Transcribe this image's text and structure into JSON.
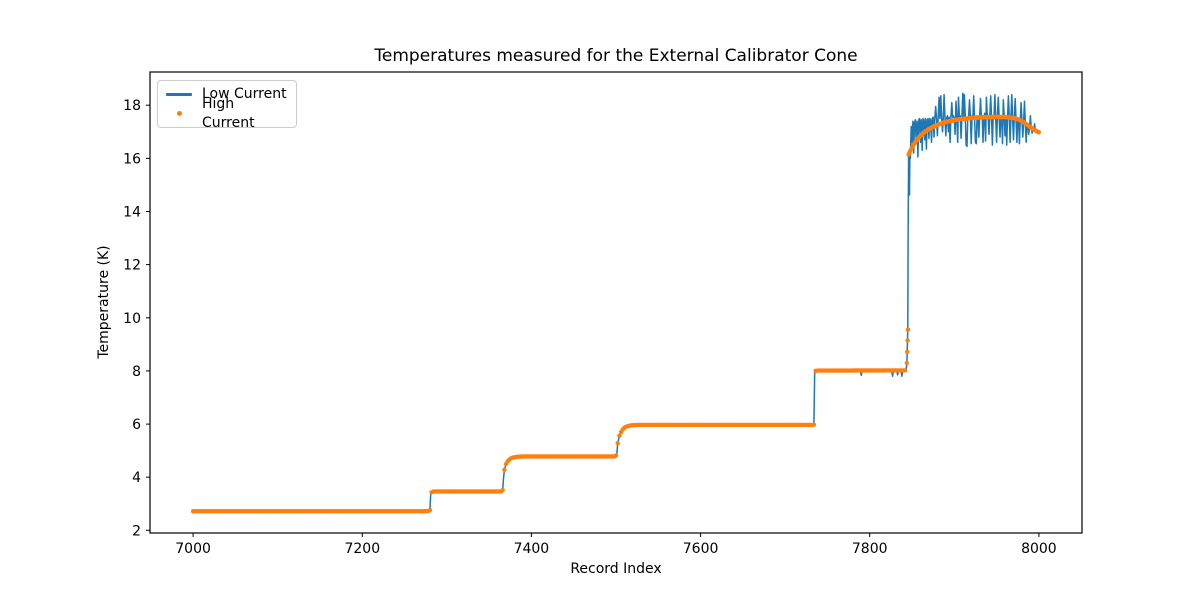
{
  "chart_data": {
    "type": "line+scatter",
    "title": "Temperatures measured for the External Calibrator Cone",
    "xlabel": "Record Index",
    "ylabel": "Temperature (K)",
    "xlim": [
      6949,
      8051
    ],
    "ylim": [
      1.9,
      19.25
    ],
    "xticks": [
      7000,
      7200,
      7400,
      7600,
      7800,
      8000
    ],
    "yticks": [
      2,
      4,
      6,
      8,
      10,
      12,
      14,
      16,
      18
    ],
    "grid": false,
    "legend_position": "upper-left",
    "series": [
      {
        "name": "Low Current",
        "type": "line",
        "color": "#1f77b4"
      },
      {
        "name": "High Current",
        "type": "scatter",
        "color": "#ff7f0e"
      }
    ],
    "plateau_summary": [
      {
        "records": "7000-7280",
        "temp_K": 2.72
      },
      {
        "records": "7283-7366",
        "temp_K": 3.46
      },
      {
        "records": "7372-7500",
        "temp_K": 4.78
      },
      {
        "records": "7515-7733",
        "temp_K": 5.97
      },
      {
        "records": "7735-7843",
        "temp_K": 8.0
      },
      {
        "records": "7848-8000",
        "temp_K": "rise 16.1 to 17.55 then 17.0; blue noisy 16.0-18.45"
      }
    ],
    "profile": [
      [
        7000,
        2.72
      ],
      [
        7279,
        2.72
      ],
      [
        7280,
        2.76
      ],
      [
        7281,
        3.42
      ],
      [
        7284,
        3.46
      ],
      [
        7364,
        3.46
      ],
      [
        7366,
        3.52
      ],
      [
        7367,
        3.95
      ],
      [
        7368,
        4.28
      ],
      [
        7370,
        4.5
      ],
      [
        7373,
        4.65
      ],
      [
        7377,
        4.73
      ],
      [
        7383,
        4.77
      ],
      [
        7392,
        4.78
      ],
      [
        7499,
        4.78
      ],
      [
        7501,
        4.85
      ],
      [
        7502,
        5.28
      ],
      [
        7504,
        5.56
      ],
      [
        7507,
        5.77
      ],
      [
        7511,
        5.89
      ],
      [
        7517,
        5.95
      ],
      [
        7526,
        5.97
      ],
      [
        7732,
        5.97
      ],
      [
        7734,
        5.98
      ],
      [
        7735,
        8.0
      ],
      [
        7738,
        8.01
      ],
      [
        7843,
        8.02
      ]
    ],
    "blue_dips": [
      [
        7789,
        8.0
      ],
      [
        7790,
        7.83
      ],
      [
        7791,
        8.0
      ],
      [
        7826,
        8.0
      ],
      [
        7827,
        7.8
      ],
      [
        7828,
        8.0
      ],
      [
        7832,
        8.0
      ],
      [
        7833,
        7.85
      ],
      [
        7834,
        8.0
      ],
      [
        7837,
        8.0
      ],
      [
        7838,
        7.8
      ],
      [
        7839,
        8.0
      ]
    ],
    "blue_riser": [
      [
        7844,
        8.3
      ],
      [
        7845,
        9.6
      ],
      [
        7845.4,
        13.0
      ],
      [
        7846,
        16.1
      ],
      [
        7846.5,
        15.6
      ],
      [
        7847,
        14.62
      ],
      [
        7847.5,
        16.3
      ]
    ],
    "orange_riser_dots": [
      [
        7843.8,
        8.3
      ],
      [
        7844.3,
        8.72
      ],
      [
        7844.8,
        9.15
      ],
      [
        7845.3,
        9.55
      ]
    ],
    "high_orange": [
      [
        7846,
        16.15
      ],
      [
        7850,
        16.42
      ],
      [
        7854,
        16.62
      ],
      [
        7859,
        16.82
      ],
      [
        7864,
        16.97
      ],
      [
        7870,
        17.1
      ],
      [
        7877,
        17.22
      ],
      [
        7885,
        17.32
      ],
      [
        7894,
        17.4
      ],
      [
        7904,
        17.46
      ],
      [
        7914,
        17.5
      ],
      [
        7926,
        17.53
      ],
      [
        7938,
        17.55
      ],
      [
        7952,
        17.56
      ],
      [
        7962,
        17.55
      ],
      [
        7970,
        17.52
      ],
      [
        7976,
        17.46
      ],
      [
        7982,
        17.36
      ],
      [
        7988,
        17.22
      ],
      [
        7993,
        17.1
      ],
      [
        8000,
        16.98
      ]
    ],
    "blue_noise": [
      [
        7848,
        16.0
      ],
      [
        7849,
        17.2
      ],
      [
        7850,
        16.6
      ],
      [
        7851,
        17.4
      ],
      [
        7852,
        16.2
      ],
      [
        7853,
        17.35
      ],
      [
        7854,
        17.45
      ],
      [
        7855,
        16.55
      ],
      [
        7856,
        17.4
      ],
      [
        7857,
        16.05
      ],
      [
        7858,
        17.45
      ],
      [
        7859,
        17.5
      ],
      [
        7860,
        16.6
      ],
      [
        7861,
        17.45
      ],
      [
        7862,
        16.3
      ],
      [
        7863,
        17.5
      ],
      [
        7864,
        17.45
      ],
      [
        7865,
        16.7
      ],
      [
        7866,
        17.5
      ],
      [
        7867,
        16.35
      ],
      [
        7868,
        17.45
      ],
      [
        7869,
        17.5
      ],
      [
        7870,
        16.75
      ],
      [
        7871,
        17.5
      ],
      [
        7872,
        17.45
      ],
      [
        7873,
        16.6
      ],
      [
        7874,
        17.5
      ],
      [
        7875,
        17.55
      ],
      [
        7876,
        16.8
      ],
      [
        7877,
        17.5
      ],
      [
        7878,
        17.95
      ],
      [
        7879,
        17.5
      ],
      [
        7880,
        16.85
      ],
      [
        7881,
        17.55
      ],
      [
        7882,
        18.3
      ],
      [
        7883,
        17.5
      ],
      [
        7884,
        18.35
      ],
      [
        7885,
        17.55
      ],
      [
        7886,
        17.0
      ],
      [
        7887,
        17.55
      ],
      [
        7888,
        18.4
      ],
      [
        7889,
        17.5
      ],
      [
        7890,
        16.85
      ],
      [
        7891,
        17.55
      ],
      [
        7892,
        17.6
      ],
      [
        7893,
        17.0
      ],
      [
        7894,
        17.55
      ],
      [
        7895,
        16.6
      ],
      [
        7896,
        17.55
      ],
      [
        7897,
        18.1
      ],
      [
        7898,
        17.55
      ],
      [
        7899,
        17.6
      ],
      [
        7900,
        17.5
      ],
      [
        7901,
        16.9
      ],
      [
        7902,
        18.15
      ],
      [
        7903,
        17.55
      ],
      [
        7904,
        16.6
      ],
      [
        7905,
        18.3
      ],
      [
        7906,
        17.55
      ],
      [
        7907,
        17.6
      ],
      [
        7908,
        16.75
      ],
      [
        7909,
        17.55
      ],
      [
        7910,
        18.45
      ],
      [
        7911,
        17.5
      ],
      [
        7912,
        18.4
      ],
      [
        7913,
        17.55
      ],
      [
        7914,
        16.5
      ],
      [
        7915,
        16.45
      ],
      [
        7916,
        17.55
      ],
      [
        7917,
        17.6
      ],
      [
        7918,
        18.2
      ],
      [
        7919,
        17.55
      ],
      [
        7920,
        16.55
      ],
      [
        7921,
        17.6
      ],
      [
        7922,
        17.55
      ],
      [
        7923,
        18.35
      ],
      [
        7924,
        17.5
      ],
      [
        7925,
        16.6
      ],
      [
        7926,
        16.55
      ],
      [
        7927,
        17.6
      ],
      [
        7928,
        17.55
      ],
      [
        7929,
        16.8
      ],
      [
        7930,
        17.6
      ],
      [
        7931,
        18.25
      ],
      [
        7932,
        17.55
      ],
      [
        7933,
        17.6
      ],
      [
        7934,
        16.6
      ],
      [
        7935,
        17.55
      ],
      [
        7936,
        17.7
      ],
      [
        7937,
        16.65
      ],
      [
        7938,
        18.3
      ],
      [
        7939,
        17.6
      ],
      [
        7940,
        17.55
      ],
      [
        7941,
        16.9
      ],
      [
        7942,
        17.6
      ],
      [
        7943,
        18.35
      ],
      [
        7944,
        17.55
      ],
      [
        7945,
        16.5
      ],
      [
        7946,
        17.6
      ],
      [
        7947,
        17.55
      ],
      [
        7948,
        18.4
      ],
      [
        7949,
        17.5
      ],
      [
        7950,
        16.6
      ],
      [
        7951,
        17.6
      ],
      [
        7952,
        18.3
      ],
      [
        7953,
        17.55
      ],
      [
        7954,
        16.8
      ],
      [
        7955,
        17.6
      ],
      [
        7956,
        17.55
      ],
      [
        7957,
        16.55
      ],
      [
        7958,
        18.2
      ],
      [
        7959,
        17.6
      ],
      [
        7960,
        16.85
      ],
      [
        7961,
        17.55
      ],
      [
        7962,
        16.5
      ],
      [
        7963,
        17.6
      ],
      [
        7964,
        18.35
      ],
      [
        7965,
        17.55
      ],
      [
        7966,
        16.6
      ],
      [
        7967,
        17.6
      ],
      [
        7968,
        18.4
      ],
      [
        7969,
        17.5
      ],
      [
        7970,
        16.7
      ],
      [
        7971,
        17.55
      ],
      [
        7972,
        18.25
      ],
      [
        7973,
        17.5
      ],
      [
        7974,
        16.6
      ],
      [
        7975,
        17.5
      ],
      [
        7976,
        17.45
      ],
      [
        7977,
        16.55
      ],
      [
        7978,
        17.45
      ],
      [
        7979,
        18.1
      ],
      [
        7980,
        17.4
      ],
      [
        7981,
        16.8
      ],
      [
        7982,
        17.35
      ],
      [
        7983,
        18.15
      ],
      [
        7984,
        17.3
      ],
      [
        7985,
        16.6
      ],
      [
        7986,
        17.25
      ],
      [
        7987,
        17.3
      ],
      [
        7988,
        16.9
      ],
      [
        7989,
        17.2
      ],
      [
        7990,
        17.6
      ],
      [
        7991,
        17.1
      ],
      [
        7992,
        16.95
      ],
      [
        7993,
        17.15
      ],
      [
        7994,
        17.05
      ],
      [
        7995,
        17.3
      ],
      [
        7996,
        17.0
      ]
    ]
  }
}
